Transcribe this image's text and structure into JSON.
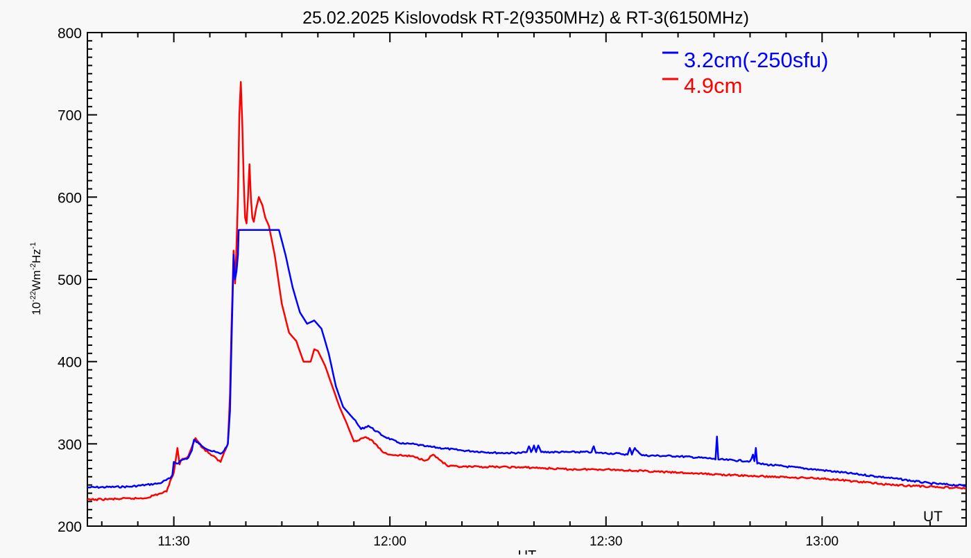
{
  "chart_data": {
    "type": "line",
    "title": "25.02.2025 Kislovodsk RT-2(9350MHz) & RT-3(6150MHz)",
    "xlabel": "UT",
    "xcorner_label": "UT",
    "ylabel_parts": {
      "base": "10",
      "exp1": "-22",
      "mid": "Wm",
      "exp2": "-2",
      "mid2": "Hz",
      "exp3": "-1"
    },
    "x_unit": "minutes after 11:00 UT",
    "xlim": [
      18,
      140
    ],
    "ylim": [
      200,
      800
    ],
    "yticks": [
      200,
      300,
      400,
      500,
      600,
      700,
      800
    ],
    "ytick_labels": [
      "200",
      "300",
      "400",
      "500",
      "600",
      "700",
      "800"
    ],
    "xticks": [
      30,
      60,
      90,
      120
    ],
    "xtick_labels": [
      "11:30",
      "12:00",
      "12:30",
      "13:00"
    ],
    "legend_position": "top-right",
    "series": [
      {
        "name": "3.2cm(-250sfu)",
        "color": "#0000ff",
        "x": [
          18,
          24,
          28,
          29.5,
          29.8,
          30,
          30.5,
          31,
          32,
          32.5,
          32.8,
          33.5,
          35,
          36.5,
          37,
          37.5,
          37.8,
          38,
          38.3,
          38.5,
          38.7,
          38.9,
          39,
          44.6,
          45.5,
          46.5,
          47.5,
          48.5,
          49.5,
          50.5,
          51.5,
          52.5,
          53.5,
          55,
          56,
          57,
          59,
          61,
          62,
          63,
          65,
          70,
          75,
          78,
          79,
          79.3,
          79.6,
          80,
          80.3,
          80.6,
          81,
          85,
          88,
          88.3,
          88.6,
          89,
          92,
          93,
          93.3,
          93.6,
          94,
          95,
          100,
          105,
          105.2,
          105.4,
          105.6,
          110,
          110.2,
          110.4,
          110.6,
          110.8,
          111,
          120,
          125,
          130,
          135,
          140
        ],
        "y": [
          247,
          248,
          252,
          258,
          262,
          278,
          276,
          280,
          283,
          292,
          305,
          300,
          292,
          288,
          292,
          300,
          340,
          420,
          530,
          500,
          510,
          530,
          560,
          560,
          530,
          490,
          460,
          446,
          450,
          440,
          410,
          370,
          345,
          330,
          318,
          322,
          310,
          302,
          300,
          300,
          297,
          292,
          289,
          289,
          290,
          297,
          290,
          298,
          290,
          298,
          290,
          290,
          290,
          297,
          289,
          289,
          288,
          287,
          295,
          287,
          295,
          286,
          285,
          282,
          281,
          309,
          281,
          279,
          282,
          287,
          279,
          295,
          276,
          268,
          263,
          258,
          252,
          249
        ]
      },
      {
        "name": "4.9cm",
        "color": "#ff0000",
        "x": [
          18,
          26,
          29,
          29.5,
          30,
          30.5,
          30.8,
          31,
          32,
          33,
          34,
          35,
          36.5,
          37,
          37.5,
          37.8,
          38,
          38.3,
          38.5,
          38.7,
          38.9,
          39.1,
          39.3,
          39.5,
          39.7,
          39.9,
          40.1,
          40.3,
          40.5,
          40.7,
          40.9,
          41.1,
          41.4,
          41.8,
          42.3,
          42.7,
          43.2,
          44,
          45,
          46,
          47,
          48,
          49,
          49.5,
          50,
          51,
          52,
          53,
          54,
          55,
          56.5,
          57,
          58,
          59,
          60,
          63,
          65,
          66,
          67,
          68,
          70,
          75,
          80,
          85,
          90,
          100,
          110,
          120,
          130,
          140
        ],
        "y": [
          232,
          234,
          242,
          255,
          265,
          295,
          275,
          280,
          285,
          307,
          295,
          288,
          278,
          290,
          300,
          360,
          440,
          535,
          495,
          540,
          600,
          700,
          740,
          690,
          620,
          575,
          568,
          600,
          640,
          600,
          575,
          570,
          585,
          600,
          590,
          575,
          565,
          530,
          470,
          435,
          425,
          400,
          400,
          415,
          413,
          395,
          370,
          345,
          325,
          303,
          308,
          307,
          300,
          290,
          287,
          285,
          280,
          287,
          280,
          273,
          272,
          272,
          271,
          269,
          269,
          265,
          261,
          258,
          250,
          246
        ]
      }
    ]
  }
}
